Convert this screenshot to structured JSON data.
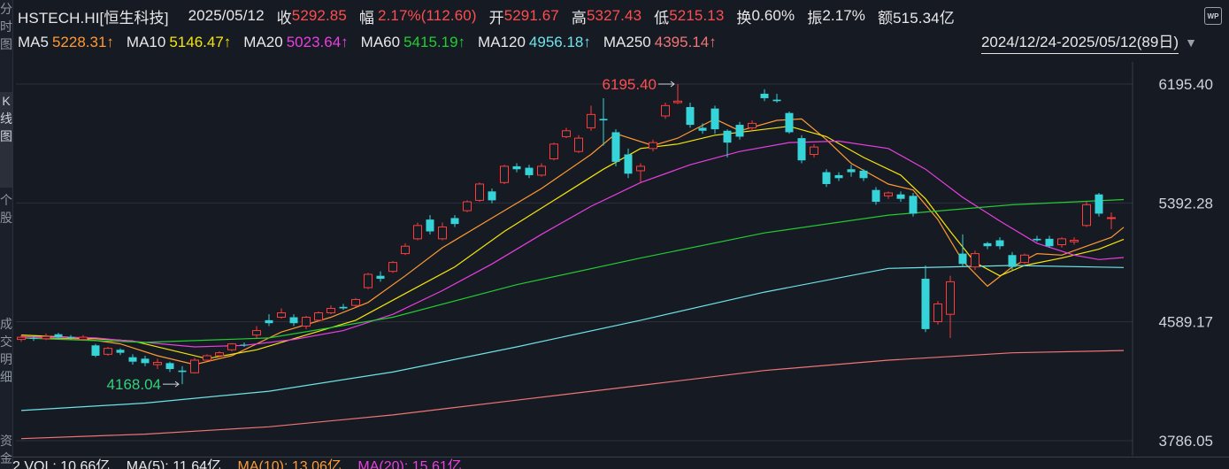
{
  "left_tabs": [
    "分时图",
    "K线图",
    "个股",
    "成交明细",
    "资金"
  ],
  "quote": {
    "symbol": "HSTECH.HI[恒生科技]",
    "date": "2025/05/12",
    "close_label": "收",
    "close": "5292.85",
    "change_label": "幅",
    "change": "2.17%(112.60)",
    "open_label": "开",
    "open": "5291.67",
    "high_label": "高",
    "high": "5327.43",
    "low_label": "低",
    "low": "5215.13",
    "turnover_label": "换",
    "turnover": "0.60%",
    "amplitude_label": "振",
    "amplitude": "2.17%",
    "amount_label": "额",
    "amount": "515.34亿"
  },
  "ma_legend": [
    {
      "name": "MA5",
      "value": "5228.31↑",
      "color": "#ff9933"
    },
    {
      "name": "MA10",
      "value": "5146.47↑",
      "color": "#f5e50a"
    },
    {
      "name": "MA20",
      "value": "5023.64↑",
      "color": "#e83fe0"
    },
    {
      "name": "MA60",
      "value": "5415.19↑",
      "color": "#22cc33"
    },
    {
      "name": "MA120",
      "value": "4956.18↑",
      "color": "#6fe3e8"
    },
    {
      "name": "MA250",
      "value": "4395.14↑",
      "color": "#f07575"
    }
  ],
  "date_range": "2024/12/24-2025/05/12(89日)",
  "wp_icon_label": "WP",
  "volume_bar": {
    "vol": "2  VOL: 10.66亿",
    "ma5": "MA(5): 11.64亿",
    "ma10": "MA(10): 13.06亿",
    "ma20": "MA(20): 15.61亿"
  },
  "colors": {
    "background": "#161a23",
    "up_candle": "#ff3b3b",
    "down_candle": "#36d3d8",
    "grid": "#2b303b",
    "axis_text": "#cfd3da",
    "high_marker": "#ff4d4f",
    "low_marker": "#33d17a"
  },
  "chart_data": {
    "type": "candlestick",
    "y_ticks": [
      "6195.40",
      "5392.28",
      "4589.17",
      "3786.05"
    ],
    "ylim": [
      3786.05,
      6195.4
    ],
    "grid": true,
    "max_marker": "6195.40",
    "min_marker": "4168.04",
    "candles": [
      {
        "o": 4470,
        "c": 4485,
        "h": 4500,
        "l": 4455
      },
      {
        "o": 4480,
        "c": 4475,
        "h": 4495,
        "l": 4460
      },
      {
        "o": 4475,
        "c": 4490,
        "h": 4510,
        "l": 4465
      },
      {
        "o": 4505,
        "c": 4485,
        "h": 4515,
        "l": 4470
      },
      {
        "o": 4485,
        "c": 4480,
        "h": 4500,
        "l": 4465
      },
      {
        "o": 4470,
        "c": 4485,
        "h": 4500,
        "l": 4460
      },
      {
        "o": 4430,
        "c": 4360,
        "h": 4440,
        "l": 4350
      },
      {
        "o": 4370,
        "c": 4410,
        "h": 4420,
        "l": 4360
      },
      {
        "o": 4400,
        "c": 4380,
        "h": 4410,
        "l": 4365
      },
      {
        "o": 4350,
        "c": 4320,
        "h": 4370,
        "l": 4300
      },
      {
        "o": 4340,
        "c": 4310,
        "h": 4360,
        "l": 4290
      },
      {
        "o": 4300,
        "c": 4315,
        "h": 4340,
        "l": 4270
      },
      {
        "o": 4310,
        "c": 4270,
        "h": 4320,
        "l": 4250
      },
      {
        "o": 4260,
        "c": 4250,
        "h": 4290,
        "l": 4168
      },
      {
        "o": 4245,
        "c": 4330,
        "h": 4345,
        "l": 4240
      },
      {
        "o": 4330,
        "c": 4360,
        "h": 4370,
        "l": 4325
      },
      {
        "o": 4360,
        "c": 4380,
        "h": 4390,
        "l": 4350
      },
      {
        "o": 4400,
        "c": 4440,
        "h": 4445,
        "l": 4390
      },
      {
        "o": 4435,
        "c": 4430,
        "h": 4450,
        "l": 4420
      },
      {
        "o": 4500,
        "c": 4530,
        "h": 4560,
        "l": 4480
      },
      {
        "o": 4600,
        "c": 4580,
        "h": 4640,
        "l": 4560
      },
      {
        "o": 4620,
        "c": 4650,
        "h": 4680,
        "l": 4610
      },
      {
        "o": 4620,
        "c": 4580,
        "h": 4640,
        "l": 4560
      },
      {
        "o": 4560,
        "c": 4620,
        "h": 4630,
        "l": 4540
      },
      {
        "o": 4600,
        "c": 4650,
        "h": 4660,
        "l": 4590
      },
      {
        "o": 4650,
        "c": 4680,
        "h": 4700,
        "l": 4640
      },
      {
        "o": 4690,
        "c": 4680,
        "h": 4710,
        "l": 4670
      },
      {
        "o": 4700,
        "c": 4740,
        "h": 4750,
        "l": 4690
      },
      {
        "o": 4820,
        "c": 4910,
        "h": 4920,
        "l": 4810
      },
      {
        "o": 4900,
        "c": 4880,
        "h": 4930,
        "l": 4860
      },
      {
        "o": 4930,
        "c": 4990,
        "h": 5000,
        "l": 4920
      },
      {
        "o": 5050,
        "c": 5100,
        "h": 5120,
        "l": 5040
      },
      {
        "o": 5150,
        "c": 5240,
        "h": 5260,
        "l": 5140
      },
      {
        "o": 5280,
        "c": 5200,
        "h": 5310,
        "l": 5180
      },
      {
        "o": 5150,
        "c": 5230,
        "h": 5260,
        "l": 5140
      },
      {
        "o": 5290,
        "c": 5250,
        "h": 5310,
        "l": 5230
      },
      {
        "o": 5340,
        "c": 5400,
        "h": 5410,
        "l": 5330
      },
      {
        "o": 5410,
        "c": 5520,
        "h": 5530,
        "l": 5400
      },
      {
        "o": 5470,
        "c": 5410,
        "h": 5490,
        "l": 5390
      },
      {
        "o": 5530,
        "c": 5640,
        "h": 5650,
        "l": 5520
      },
      {
        "o": 5640,
        "c": 5620,
        "h": 5660,
        "l": 5600
      },
      {
        "o": 5630,
        "c": 5580,
        "h": 5650,
        "l": 5560
      },
      {
        "o": 5580,
        "c": 5640,
        "h": 5660,
        "l": 5570
      },
      {
        "o": 5690,
        "c": 5790,
        "h": 5800,
        "l": 5680
      },
      {
        "o": 5840,
        "c": 5880,
        "h": 5900,
        "l": 5830
      },
      {
        "o": 5740,
        "c": 5830,
        "h": 5850,
        "l": 5730
      },
      {
        "o": 5900,
        "c": 5990,
        "h": 6050,
        "l": 5880
      },
      {
        "o": 5960,
        "c": 5950,
        "h": 6100,
        "l": 5780
      },
      {
        "o": 5870,
        "c": 5670,
        "h": 5890,
        "l": 5640
      },
      {
        "o": 5720,
        "c": 5590,
        "h": 5760,
        "l": 5560
      },
      {
        "o": 5610,
        "c": 5640,
        "h": 5660,
        "l": 5530
      },
      {
        "o": 5760,
        "c": 5800,
        "h": 5820,
        "l": 5740
      },
      {
        "o": 5980,
        "c": 6050,
        "h": 6070,
        "l": 5960
      },
      {
        "o": 6070,
        "c": 6080,
        "h": 6195.4,
        "l": 6060
      },
      {
        "o": 6040,
        "c": 5920,
        "h": 6070,
        "l": 5900
      },
      {
        "o": 5900,
        "c": 5880,
        "h": 5930,
        "l": 5860
      },
      {
        "o": 6030,
        "c": 5890,
        "h": 6050,
        "l": 5860
      },
      {
        "o": 5880,
        "c": 5800,
        "h": 5890,
        "l": 5700
      },
      {
        "o": 5920,
        "c": 5840,
        "h": 5940,
        "l": 5820
      },
      {
        "o": 5900,
        "c": 5930,
        "h": 5950,
        "l": 5880
      },
      {
        "o": 6130,
        "c": 6100,
        "h": 6160,
        "l": 6080
      },
      {
        "o": 6090,
        "c": 6080,
        "h": 6130,
        "l": 6070
      },
      {
        "o": 6000,
        "c": 5870,
        "h": 6010,
        "l": 5860
      },
      {
        "o": 5830,
        "c": 5680,
        "h": 5850,
        "l": 5660
      },
      {
        "o": 5720,
        "c": 5770,
        "h": 5790,
        "l": 5700
      },
      {
        "o": 5600,
        "c": 5520,
        "h": 5620,
        "l": 5500
      },
      {
        "o": 5580,
        "c": 5560,
        "h": 5600,
        "l": 5540
      },
      {
        "o": 5620,
        "c": 5600,
        "h": 5650,
        "l": 5570
      },
      {
        "o": 5610,
        "c": 5560,
        "h": 5620,
        "l": 5540
      },
      {
        "o": 5480,
        "c": 5400,
        "h": 5500,
        "l": 5380
      },
      {
        "o": 5440,
        "c": 5460,
        "h": 5470,
        "l": 5420
      },
      {
        "o": 5450,
        "c": 5420,
        "h": 5470,
        "l": 5400
      },
      {
        "o": 5440,
        "c": 5320,
        "h": 5460,
        "l": 5300
      },
      {
        "o": 4880,
        "c": 4540,
        "h": 4970,
        "l": 4520
      },
      {
        "o": 4590,
        "c": 4710,
        "h": 4730,
        "l": 4570
      },
      {
        "o": 4640,
        "c": 4860,
        "h": 4900,
        "l": 4480
      },
      {
        "o": 5050,
        "c": 4980,
        "h": 5180,
        "l": 4960
      },
      {
        "o": 4960,
        "c": 5050,
        "h": 5070,
        "l": 4940
      },
      {
        "o": 5120,
        "c": 5100,
        "h": 5130,
        "l": 5080
      },
      {
        "o": 5140,
        "c": 5100,
        "h": 5160,
        "l": 5080
      },
      {
        "o": 5040,
        "c": 4960,
        "h": 5060,
        "l": 4940
      },
      {
        "o": 4990,
        "c": 5040,
        "h": 5050,
        "l": 4980
      },
      {
        "o": 5150,
        "c": 5140,
        "h": 5170,
        "l": 5130
      },
      {
        "o": 5150,
        "c": 5100,
        "h": 5170,
        "l": 5090
      },
      {
        "o": 5110,
        "c": 5150,
        "h": 5160,
        "l": 5090
      },
      {
        "o": 5130,
        "c": 5140,
        "h": 5160,
        "l": 5110
      },
      {
        "o": 5240,
        "c": 5380,
        "h": 5400,
        "l": 5230
      },
      {
        "o": 5450,
        "c": 5320,
        "h": 5460,
        "l": 5300
      },
      {
        "o": 5291.67,
        "c": 5292.85,
        "h": 5327.43,
        "l": 5215.13
      }
    ],
    "ma": {
      "MA5": [
        [
          0,
          4480
        ],
        [
          5,
          4475
        ],
        [
          8,
          4440
        ],
        [
          11,
          4360
        ],
        [
          14,
          4300
        ],
        [
          17,
          4360
        ],
        [
          21,
          4520
        ],
        [
          25,
          4620
        ],
        [
          28,
          4720
        ],
        [
          31,
          4900
        ],
        [
          34,
          5090
        ],
        [
          38,
          5290
        ],
        [
          42,
          5490
        ],
        [
          46,
          5720
        ],
        [
          48,
          5860
        ],
        [
          51,
          5780
        ],
        [
          53,
          5830
        ],
        [
          56,
          5960
        ],
        [
          58,
          5880
        ],
        [
          61,
          5950
        ],
        [
          63,
          5960
        ],
        [
          65,
          5820
        ],
        [
          67,
          5660
        ],
        [
          70,
          5520
        ],
        [
          72,
          5480
        ],
        [
          74,
          5280
        ],
        [
          76,
          5000
        ],
        [
          78,
          4830
        ],
        [
          80,
          4960
        ],
        [
          82,
          5050
        ],
        [
          84,
          5040
        ],
        [
          86,
          5100
        ],
        [
          88,
          5160
        ],
        [
          89,
          5228.31
        ]
      ],
      "MA10": [
        [
          0,
          4500
        ],
        [
          5,
          4480
        ],
        [
          9,
          4460
        ],
        [
          12,
          4400
        ],
        [
          15,
          4340
        ],
        [
          19,
          4400
        ],
        [
          23,
          4500
        ],
        [
          27,
          4600
        ],
        [
          31,
          4780
        ],
        [
          35,
          4960
        ],
        [
          39,
          5200
        ],
        [
          43,
          5410
        ],
        [
          47,
          5620
        ],
        [
          50,
          5760
        ],
        [
          53,
          5790
        ],
        [
          56,
          5850
        ],
        [
          59,
          5880
        ],
        [
          62,
          5910
        ],
        [
          65,
          5840
        ],
        [
          68,
          5700
        ],
        [
          71,
          5580
        ],
        [
          73,
          5420
        ],
        [
          75,
          5200
        ],
        [
          77,
          4990
        ],
        [
          79,
          4900
        ],
        [
          81,
          4970
        ],
        [
          84,
          5020
        ],
        [
          87,
          5080
        ],
        [
          89,
          5146.47
        ]
      ],
      "MA20": [
        [
          0,
          4490
        ],
        [
          6,
          4480
        ],
        [
          10,
          4450
        ],
        [
          14,
          4420
        ],
        [
          18,
          4430
        ],
        [
          22,
          4470
        ],
        [
          26,
          4530
        ],
        [
          30,
          4640
        ],
        [
          34,
          4800
        ],
        [
          38,
          4980
        ],
        [
          42,
          5180
        ],
        [
          46,
          5370
        ],
        [
          50,
          5530
        ],
        [
          54,
          5650
        ],
        [
          58,
          5740
        ],
        [
          62,
          5800
        ],
        [
          66,
          5810
        ],
        [
          70,
          5760
        ],
        [
          73,
          5620
        ],
        [
          76,
          5430
        ],
        [
          79,
          5270
        ],
        [
          82,
          5120
        ],
        [
          85,
          5040
        ],
        [
          87,
          5010
        ],
        [
          89,
          5023.64
        ]
      ],
      "MA60": [
        [
          0,
          4480
        ],
        [
          10,
          4450
        ],
        [
          20,
          4480
        ],
        [
          30,
          4620
        ],
        [
          40,
          4840
        ],
        [
          50,
          5020
        ],
        [
          60,
          5190
        ],
        [
          70,
          5310
        ],
        [
          80,
          5380
        ],
        [
          89,
          5415.19
        ]
      ],
      "MA120": [
        [
          0,
          3990
        ],
        [
          10,
          4040
        ],
        [
          20,
          4120
        ],
        [
          30,
          4250
        ],
        [
          40,
          4420
        ],
        [
          50,
          4600
        ],
        [
          60,
          4790
        ],
        [
          70,
          4950
        ],
        [
          80,
          4970
        ],
        [
          89,
          4956.18
        ]
      ],
      "MA250": [
        [
          0,
          3800
        ],
        [
          10,
          3830
        ],
        [
          20,
          3880
        ],
        [
          30,
          3960
        ],
        [
          40,
          4060
        ],
        [
          50,
          4160
        ],
        [
          60,
          4260
        ],
        [
          70,
          4330
        ],
        [
          80,
          4380
        ],
        [
          89,
          4395.14
        ]
      ]
    }
  }
}
